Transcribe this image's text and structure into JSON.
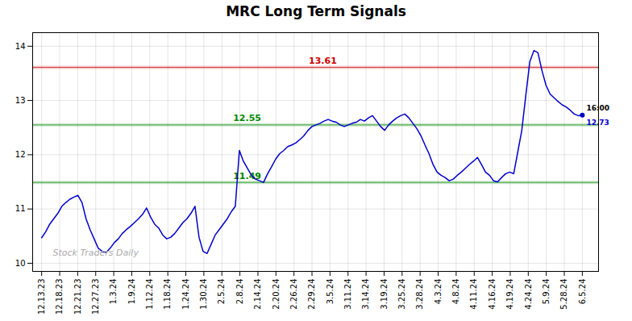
{
  "chart_data": {
    "type": "line",
    "title": "MRC Long Term Signals",
    "x": [
      0,
      30,
      60,
      90,
      120,
      150,
      180,
      210,
      240,
      270,
      300,
      330,
      360,
      390,
      420,
      450,
      480,
      510,
      540,
      570,
      600,
      630,
      660,
      690,
      720,
      750,
      780,
      810,
      840,
      870,
      900,
      930,
      960,
      990,
      1020,
      1050,
      1080,
      1110,
      1140,
      1170,
      1200,
      1230,
      1260,
      1290,
      1320,
      1350,
      1380,
      1410,
      1440,
      1470,
      1500,
      1530,
      1560,
      1590,
      1620,
      1650,
      1680,
      1710,
      1740,
      1770,
      1800,
      1830,
      1860,
      1890,
      1920,
      1950,
      1980,
      2010,
      2040,
      2070,
      2100,
      2130,
      2160,
      2190,
      2220,
      2250,
      2280,
      2310,
      2340,
      2370,
      2400,
      2430,
      2460,
      2490,
      2520,
      2550,
      2580,
      2610,
      2640,
      2670,
      2700,
      2730,
      2760,
      2790,
      2820,
      2850,
      2880,
      2910,
      2940,
      2970,
      3000,
      3030,
      3060,
      3090,
      3120,
      3150,
      3180,
      3210,
      3240,
      3270,
      3300,
      3330,
      3360,
      3390,
      3420,
      3450,
      3480,
      3510,
      3540,
      3570,
      3600,
      3630,
      3660,
      3690,
      3720,
      3750,
      3780,
      3810,
      3840,
      3870,
      3900,
      3930,
      3960,
      3990,
      4020
    ],
    "series": [
      {
        "color": "#0000cc",
        "values": [
          10.47,
          10.58,
          10.72,
          10.82,
          10.92,
          11.05,
          11.12,
          11.18,
          11.22,
          11.25,
          11.12,
          10.82,
          10.62,
          10.45,
          10.28,
          10.22,
          10.2,
          10.28,
          10.38,
          10.45,
          10.55,
          10.62,
          10.68,
          10.75,
          10.82,
          10.9,
          11.02,
          10.85,
          10.72,
          10.65,
          10.52,
          10.45,
          10.48,
          10.55,
          10.65,
          10.75,
          10.82,
          10.92,
          11.05,
          10.48,
          10.22,
          10.18,
          10.35,
          10.52,
          10.62,
          10.72,
          10.82,
          10.95,
          11.05,
          12.08,
          11.88,
          11.75,
          11.62,
          11.55,
          11.52,
          11.49,
          11.65,
          11.78,
          11.92,
          12.02,
          12.08,
          12.15,
          12.18,
          12.22,
          12.28,
          12.35,
          12.45,
          12.52,
          12.55,
          12.58,
          12.62,
          12.65,
          12.62,
          12.6,
          12.55,
          12.52,
          12.55,
          12.58,
          12.6,
          12.65,
          12.62,
          12.68,
          12.72,
          12.62,
          12.52,
          12.45,
          12.55,
          12.62,
          12.68,
          12.72,
          12.75,
          12.68,
          12.58,
          12.48,
          12.35,
          12.18,
          12.02,
          11.82,
          11.68,
          11.62,
          11.58,
          11.52,
          11.55,
          11.62,
          11.68,
          11.75,
          11.82,
          11.88,
          11.95,
          11.82,
          11.68,
          11.62,
          11.52,
          11.5,
          11.58,
          11.65,
          11.68,
          11.65,
          12.05,
          12.45,
          13.1,
          13.72,
          13.92,
          13.88,
          13.55,
          13.28,
          13.12,
          13.05,
          12.98,
          12.92,
          12.88,
          12.82,
          12.75,
          12.72,
          12.73
        ]
      }
    ],
    "xlim": [
      -67,
      4140.6
    ],
    "xticks": [
      {
        "value": 0,
        "label": "12.13.23"
      },
      {
        "value": 134,
        "label": "12.18.23"
      },
      {
        "value": 268,
        "label": "12.21.23"
      },
      {
        "value": 402,
        "label": "12.27.23"
      },
      {
        "value": 536,
        "label": "1.3.24"
      },
      {
        "value": 670,
        "label": "1.9.24"
      },
      {
        "value": 804,
        "label": "1.12.24"
      },
      {
        "value": 938,
        "label": "1.18.24"
      },
      {
        "value": 1072,
        "label": "1.24.24"
      },
      {
        "value": 1206,
        "label": "1.30.24"
      },
      {
        "value": 1340,
        "label": "2.5.24"
      },
      {
        "value": 1474,
        "label": "2.8.24"
      },
      {
        "value": 1608,
        "label": "2.14.24"
      },
      {
        "value": 1742,
        "label": "2.20.24"
      },
      {
        "value": 1876,
        "label": "2.26.24"
      },
      {
        "value": 2010,
        "label": "2.29.24"
      },
      {
        "value": 2144,
        "label": "3.5.24"
      },
      {
        "value": 2278,
        "label": "3.11.24"
      },
      {
        "value": 2412,
        "label": "3.14.24"
      },
      {
        "value": 2546,
        "label": "3.19.24"
      },
      {
        "value": 2680,
        "label": "3.25.24"
      },
      {
        "value": 2814,
        "label": "3.28.24"
      },
      {
        "value": 2948,
        "label": "4.3.24"
      },
      {
        "value": 3082,
        "label": "4.8.24"
      },
      {
        "value": 3216,
        "label": "4.11.24"
      },
      {
        "value": 3350,
        "label": "4.16.24"
      },
      {
        "value": 3484,
        "label": "4.19.24"
      },
      {
        "value": 3618,
        "label": "4.24.24"
      },
      {
        "value": 3752,
        "label": "5.9.24"
      },
      {
        "value": 3886,
        "label": "5.28.24"
      },
      {
        "value": 4020,
        "label": "6.5.24"
      }
    ],
    "ylim": [
      9.85,
      14.25
    ],
    "yticks": [
      10,
      11,
      12,
      13,
      14
    ],
    "grid": true,
    "hlines": [
      {
        "value": 13.61,
        "label": "13.61",
        "color": "#cc0000"
      },
      {
        "value": 12.55,
        "label": "12.55",
        "color": "#008800"
      },
      {
        "value": 11.49,
        "label": "11.49",
        "color": "#008800"
      }
    ],
    "annotations": [
      {
        "text": "16:00",
        "color": "#000000"
      },
      {
        "text": "12.73",
        "color": "#0000cc"
      },
      {
        "text": "Stock Traders Daily",
        "color": "#aaaaaa"
      }
    ]
  }
}
